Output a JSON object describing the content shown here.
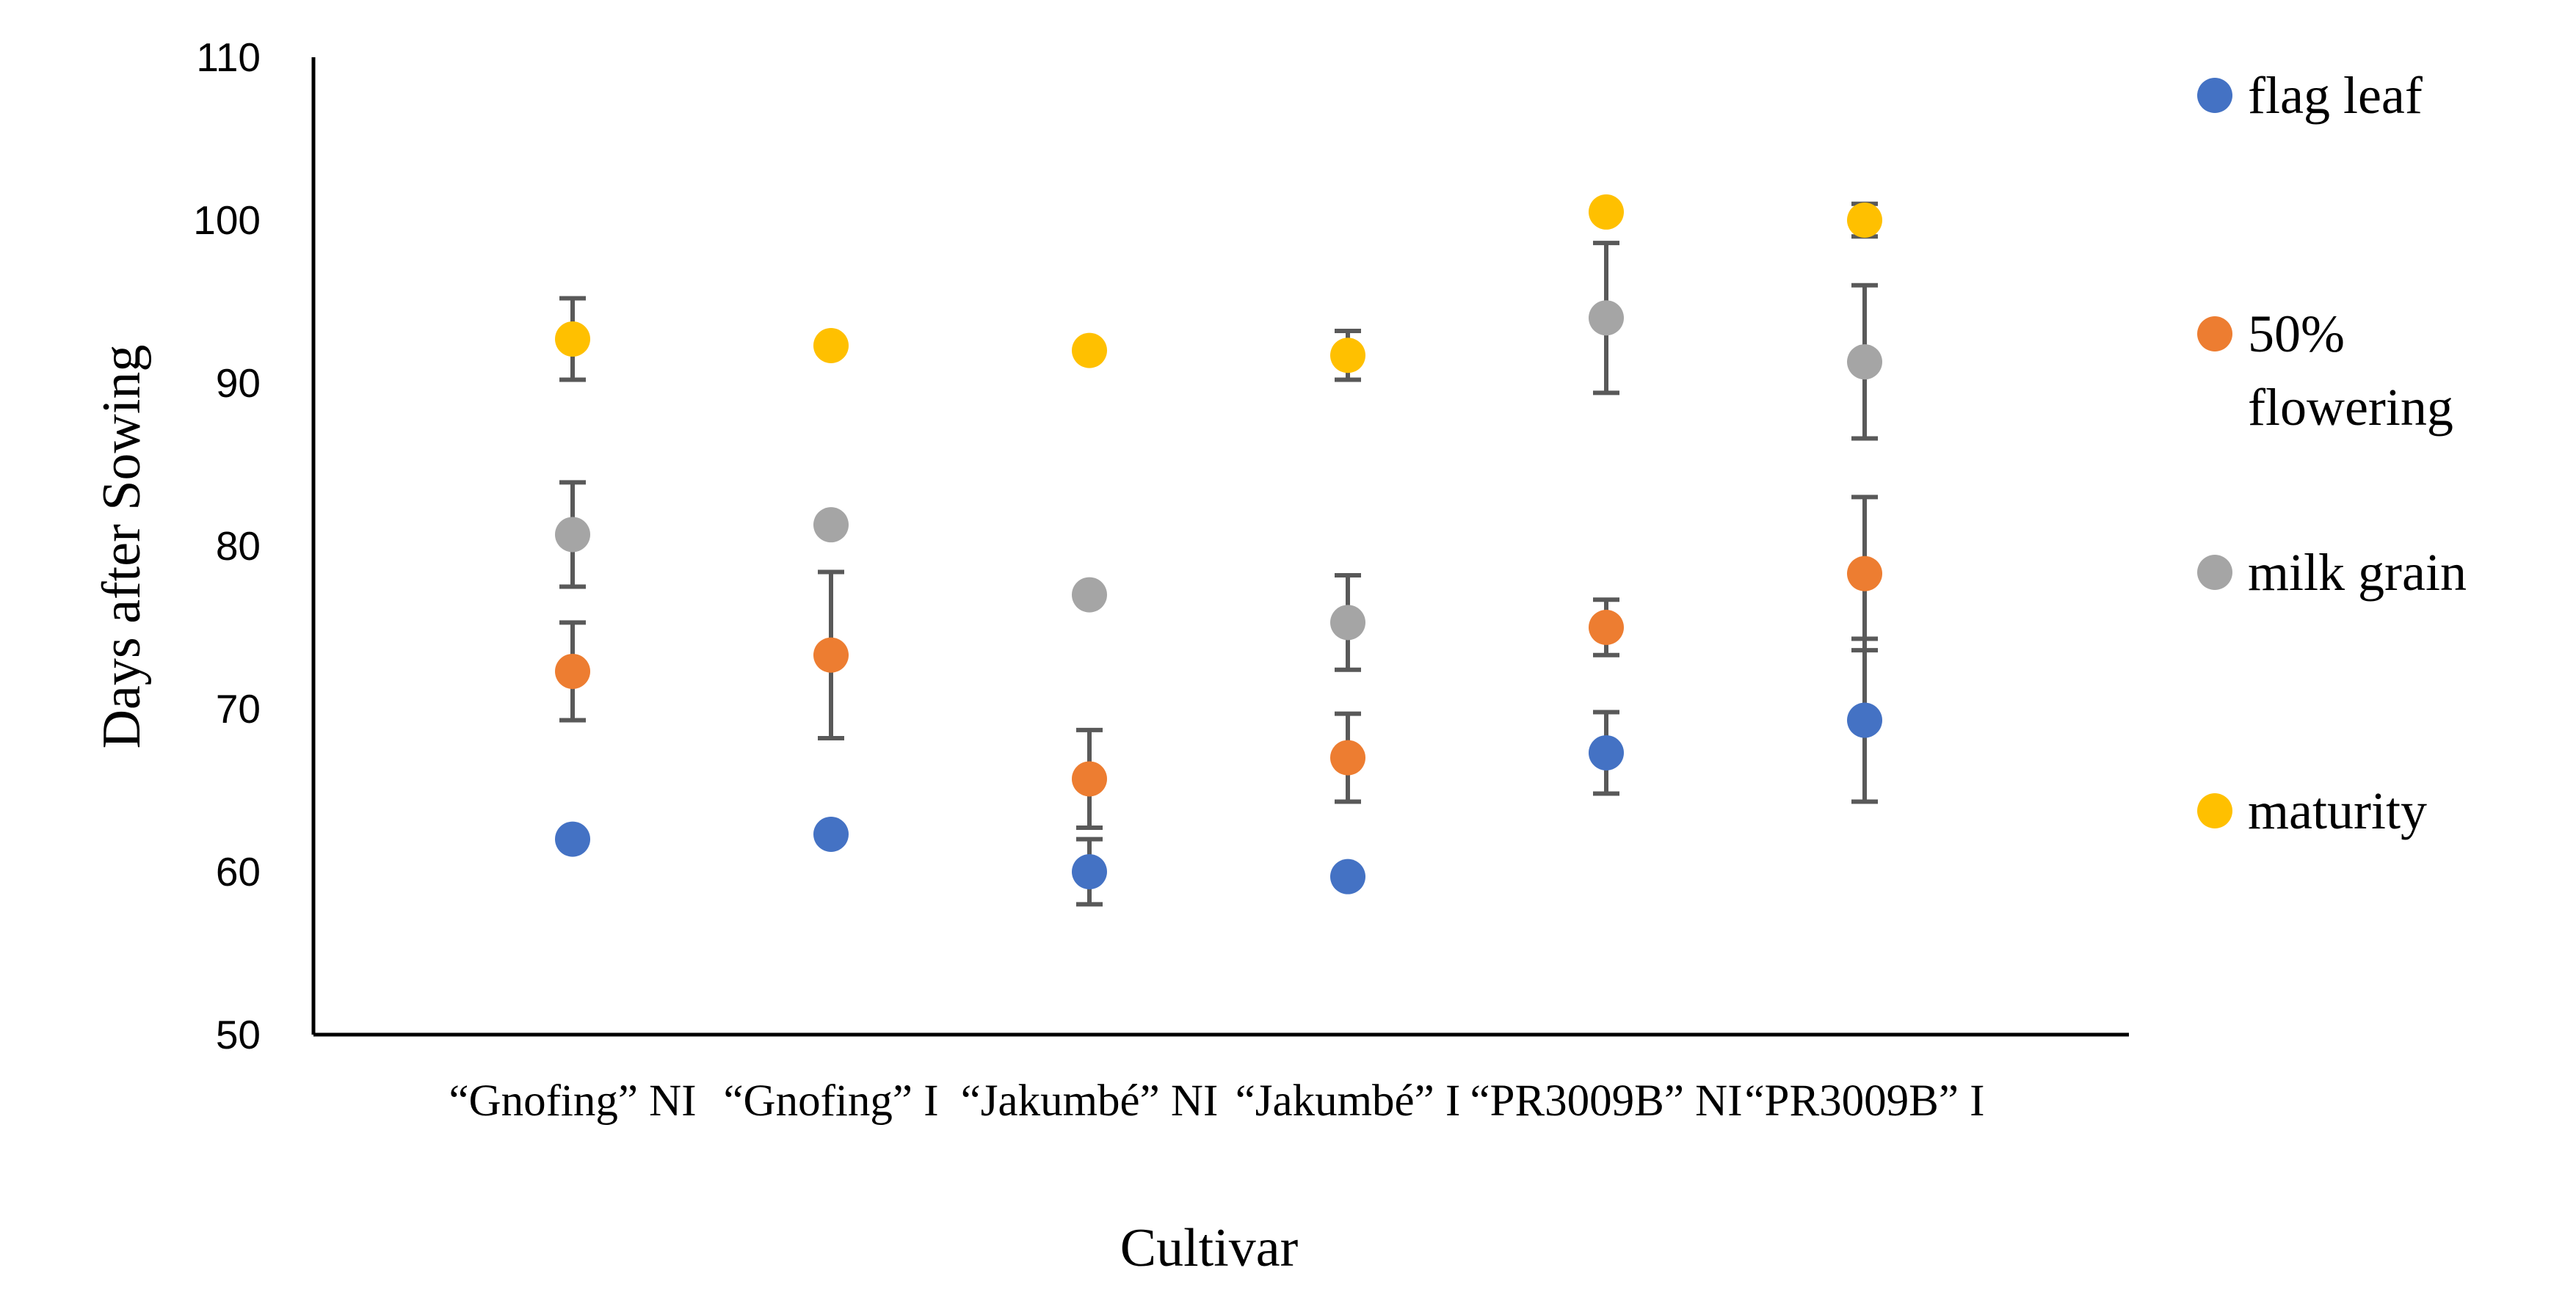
{
  "chart_data": {
    "type": "scatter",
    "title": "",
    "xlabel": "Cultivar",
    "ylabel": "Days after Sowing",
    "ylim": [
      50,
      110
    ],
    "yticks": [
      "50",
      "60",
      "70",
      "80",
      "90",
      "100",
      "110"
    ],
    "categories": [
      "“Gnofing” NI",
      "“Gnofing” I",
      "“Jakumbé” NI",
      "“Jakumbé” I",
      "“PR3009B” NI",
      "“PR3009B” I"
    ],
    "grid": false,
    "legend_position": "right",
    "series": [
      {
        "name": "flag leaf",
        "color": "#4472C4",
        "values": [
          62.0,
          62.3,
          60.0,
          59.7,
          67.3,
          69.3
        ],
        "error": [
          null,
          null,
          2.0,
          null,
          2.5,
          5.0
        ]
      },
      {
        "name": "50% flowering",
        "color": "#ED7D31",
        "values": [
          72.3,
          73.3,
          65.7,
          67.0,
          75.0,
          78.3
        ],
        "error": [
          3.0,
          5.1,
          3.0,
          2.7,
          1.7,
          4.7
        ]
      },
      {
        "name": "milk grain",
        "color": "#A5A5A5",
        "values": [
          80.7,
          81.3,
          77.0,
          75.3,
          94.0,
          91.3
        ],
        "error": [
          3.2,
          null,
          null,
          2.9,
          4.6,
          4.7
        ]
      },
      {
        "name": "maturity",
        "color": "#FFC000",
        "values": [
          92.7,
          92.3,
          92.0,
          91.7,
          100.5,
          100.0
        ],
        "error": [
          2.5,
          null,
          null,
          1.5,
          null,
          1.0
        ]
      }
    ]
  }
}
